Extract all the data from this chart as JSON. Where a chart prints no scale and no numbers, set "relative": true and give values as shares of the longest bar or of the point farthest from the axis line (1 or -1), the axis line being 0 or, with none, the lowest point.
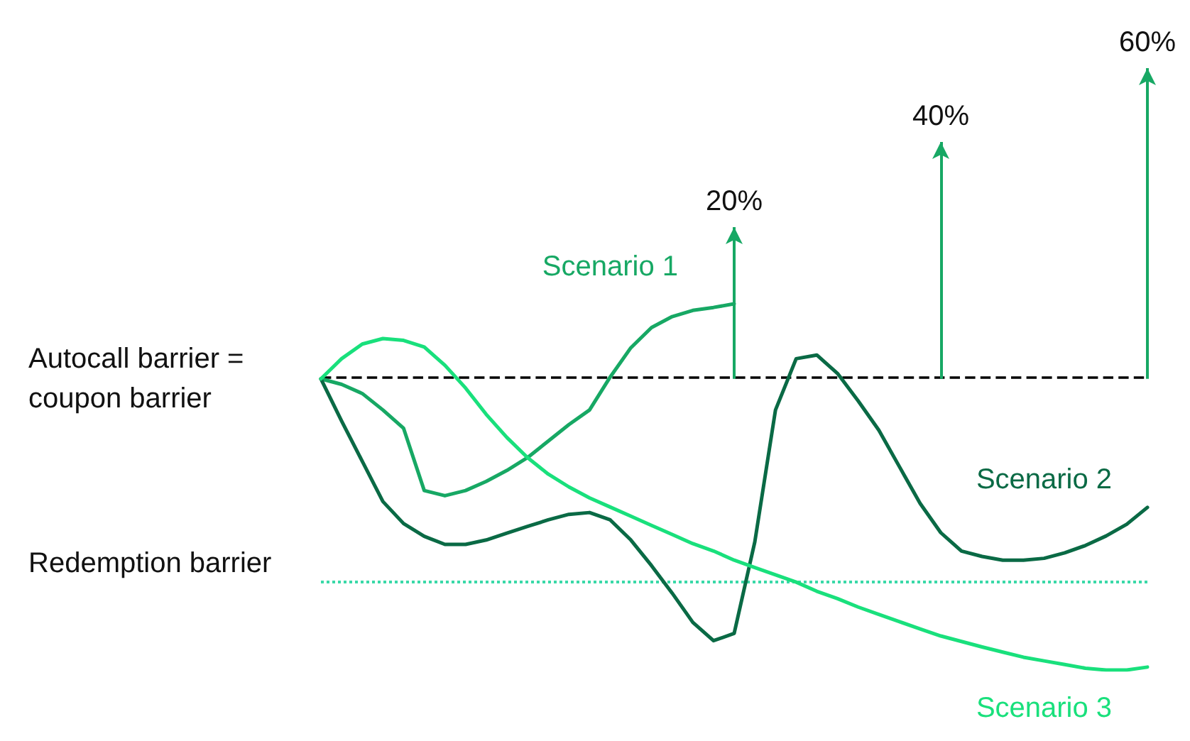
{
  "chart_data": {
    "type": "line",
    "relative": true,
    "grid": false,
    "legend": false,
    "marker": "none",
    "line_style": "solid",
    "categories": [
      null,
      null,
      null,
      null,
      null,
      null,
      null,
      null,
      null,
      null,
      null,
      null,
      null,
      null,
      null,
      null,
      null,
      null,
      null,
      null,
      null,
      null,
      null,
      null,
      null,
      null,
      null,
      null,
      null,
      null,
      null,
      null,
      null,
      null,
      null,
      null,
      null,
      null,
      null,
      null,
      null
    ],
    "series": [
      {
        "name": "Scenario 1",
        "color": "#17a864",
        "values": [
          0.795,
          0.78,
          0.755,
          0.71,
          0.66,
          0.49,
          0.476,
          0.49,
          0.515,
          0.545,
          0.58,
          0.625,
          0.67,
          0.71,
          0.8,
          0.88,
          0.935,
          0.965,
          0.982,
          0.99,
          1,
          null,
          null,
          null,
          null,
          null,
          null,
          null,
          null,
          null,
          null,
          null,
          null,
          null,
          null,
          null,
          null,
          null,
          null,
          null,
          null
        ]
      },
      {
        "name": "Scenario 2",
        "color": "#0a6a45",
        "values": [
          0.795,
          0.68,
          0.57,
          0.46,
          0.4,
          0.365,
          0.343,
          0.343,
          0.355,
          0.374,
          0.392,
          0.41,
          0.425,
          0.43,
          0.41,
          0.355,
          0.285,
          0.21,
          0.13,
          0.08,
          0.1,
          0.35,
          0.71,
          0.85,
          0.86,
          0.81,
          0.735,
          0.655,
          0.555,
          0.455,
          0.375,
          0.325,
          0.31,
          0.3,
          0.3,
          0.305,
          0.32,
          0.34,
          0.366,
          0.398,
          0.444
        ]
      },
      {
        "name": "Scenario 3",
        "color": "#19e07c",
        "values": [
          0.795,
          0.85,
          0.89,
          0.905,
          0.9,
          0.882,
          0.832,
          0.77,
          0.698,
          0.635,
          0.58,
          0.535,
          0.5,
          0.47,
          0.445,
          0.42,
          0.395,
          0.37,
          0.345,
          0.325,
          0.3,
          0.28,
          0.26,
          0.24,
          0.215,
          0.195,
          0.172,
          0.152,
          0.132,
          0.112,
          0.093,
          0.078,
          0.063,
          0.049,
          0.035,
          0.025,
          0.015,
          0.005,
          0,
          0,
          0.008
        ]
      }
    ],
    "ref_lines": [
      {
        "axis": "y",
        "value": 0.795,
        "label": "Autocall barrier = coupon barrier",
        "color": "#000000",
        "line_style": "dashed"
      },
      {
        "axis": "y",
        "value": 0.236,
        "label": "Redemption barrier",
        "color": "#3ad9a8",
        "line_style": "dotted"
      }
    ],
    "annotations": [
      "20%",
      "40%",
      "60%"
    ]
  }
}
